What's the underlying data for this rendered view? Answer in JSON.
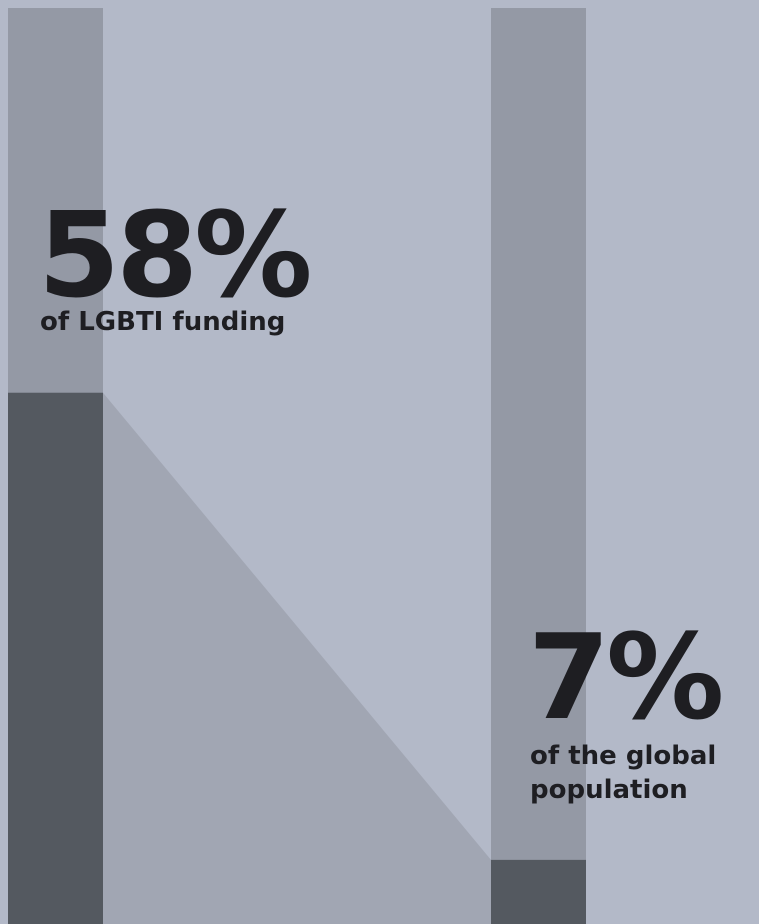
{
  "chart_data": {
    "type": "bar",
    "categories": [
      "of LGBTI funding",
      "of the global population"
    ],
    "values": [
      58,
      7
    ],
    "value_labels": [
      "58%",
      "7%"
    ],
    "ylim": [
      0,
      100
    ],
    "color": "#545960"
  }
}
